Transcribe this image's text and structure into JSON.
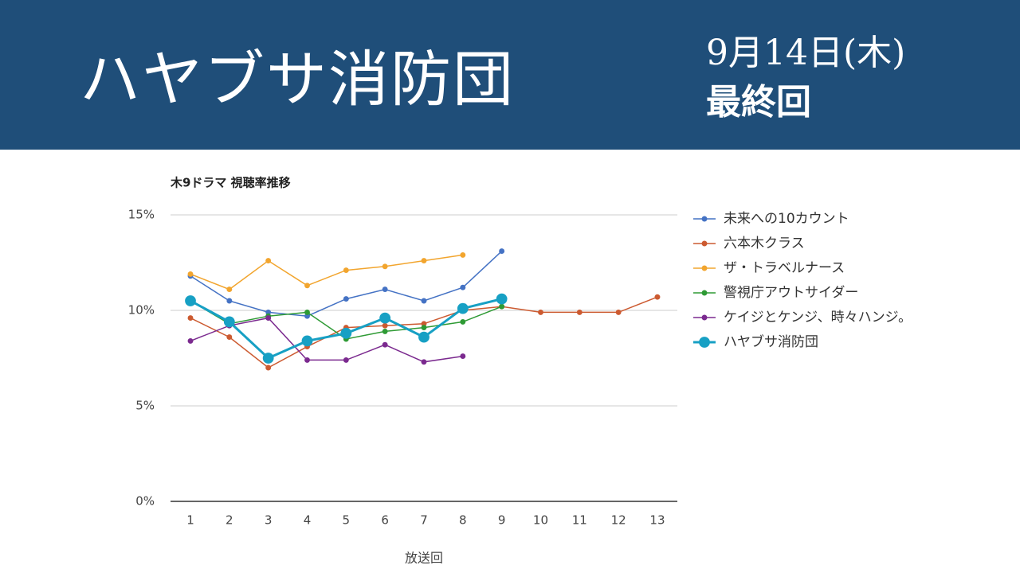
{
  "header": {
    "title": "ハヤブサ消防団",
    "date": "9月14日(木)",
    "note": "最終回"
  },
  "chart_data": {
    "type": "line",
    "title": "木9ドラマ 視聴率推移",
    "x_label": "放送回",
    "categories": [
      "1",
      "2",
      "3",
      "4",
      "5",
      "6",
      "7",
      "8",
      "9",
      "10",
      "11",
      "12",
      "13"
    ],
    "ylim": [
      0,
      15
    ],
    "yticks": [
      {
        "value": 0,
        "label": "0%"
      },
      {
        "value": 5,
        "label": "5%"
      },
      {
        "value": 10,
        "label": "10%"
      },
      {
        "value": 15,
        "label": "15%"
      }
    ],
    "grid": true,
    "legend": "right",
    "series": [
      {
        "name": "未来への10カウント",
        "color": "#4472c4",
        "line_width": 1.5,
        "values": [
          11.8,
          10.5,
          9.9,
          9.7,
          10.6,
          11.1,
          10.5,
          11.2,
          13.1,
          null,
          null,
          null,
          null
        ]
      },
      {
        "name": "六本木クラス",
        "color": "#cc5a30",
        "line_width": 1.5,
        "values": [
          9.6,
          8.6,
          7.0,
          8.1,
          9.1,
          9.2,
          9.3,
          10.0,
          10.2,
          9.9,
          9.9,
          9.9,
          10.7
        ]
      },
      {
        "name": "ザ・トラベルナース",
        "color": "#f2a52e",
        "line_width": 1.5,
        "values": [
          11.9,
          11.1,
          12.6,
          11.3,
          12.1,
          12.3,
          12.6,
          12.9,
          null,
          null,
          null,
          null,
          null
        ]
      },
      {
        "name": "警視庁アウトサイダー",
        "color": "#2e9a34",
        "line_width": 1.5,
        "values": [
          10.5,
          9.3,
          9.7,
          9.9,
          8.5,
          8.9,
          9.1,
          9.4,
          10.2,
          null,
          null,
          null,
          null
        ]
      },
      {
        "name": "ケイジとケンジ、時々ハンジ。",
        "color": "#7b2a8f",
        "line_width": 1.5,
        "values": [
          8.4,
          9.2,
          9.6,
          7.4,
          7.4,
          8.2,
          7.3,
          7.6,
          null,
          null,
          null,
          null,
          null
        ]
      },
      {
        "name": "ハヤブサ消防団",
        "color": "#17a0c4",
        "line_width": 3,
        "values": [
          10.5,
          9.4,
          7.5,
          8.4,
          8.8,
          9.6,
          8.6,
          10.1,
          10.6,
          null,
          null,
          null,
          null
        ]
      }
    ]
  }
}
